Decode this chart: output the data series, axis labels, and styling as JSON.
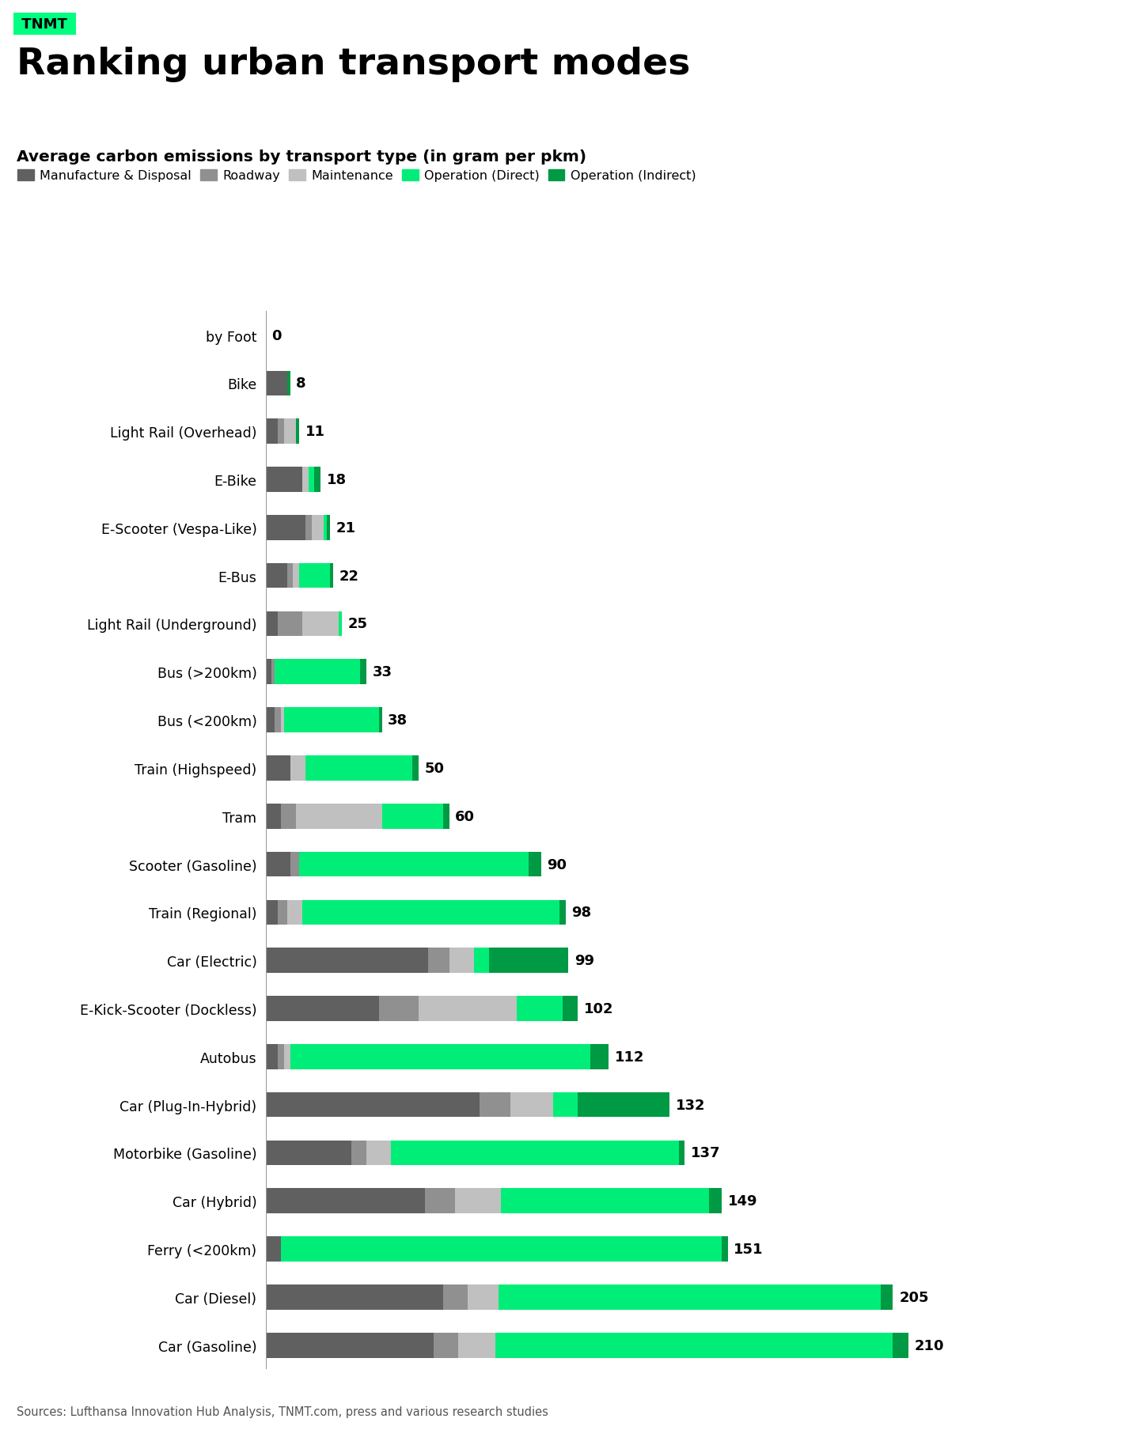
{
  "title": "Ranking urban transport modes",
  "subtitle": "Average carbon emissions by transport type (in gram per pkm)",
  "tnmt_label": "TNMT",
  "source": "Sources: Lufthansa Innovation Hub Analysis, TNMT.com, press and various research studies",
  "tnmt_bg_color": "#00FF80",
  "background_color": "#FFFFFF",
  "legend": [
    {
      "label": "Manufacture & Disposal",
      "color": "#606060"
    },
    {
      "label": "Roadway",
      "color": "#909090"
    },
    {
      "label": "Maintenance",
      "color": "#C0C0C0"
    },
    {
      "label": "Operation (Direct)",
      "color": "#00EE77"
    },
    {
      "label": "Operation (Indirect)",
      "color": "#009944"
    }
  ],
  "categories": [
    "by Foot",
    "Bike",
    "Light Rail (Overhead)",
    "E-Bike",
    "E-Scooter (Vespa-Like)",
    "E-Bus",
    "Light Rail (Underground)",
    "Bus (>200km)",
    "Bus (<200km)",
    "Train (Highspeed)",
    "Tram",
    "Scooter (Gasoline)",
    "Train (Regional)",
    "Car (Electric)",
    "E-Kick-Scooter (Dockless)",
    "Autobus",
    "Car (Plug-In-Hybrid)",
    "Motorbike (Gasoline)",
    "Car (Hybrid)",
    "Ferry (<200km)",
    "Car (Diesel)",
    "Car (Gasoline)"
  ],
  "totals": [
    0,
    8,
    11,
    18,
    21,
    22,
    25,
    33,
    38,
    50,
    60,
    90,
    98,
    99,
    102,
    112,
    132,
    137,
    149,
    151,
    205,
    210
  ],
  "segments": {
    "manufacture_disposal": [
      0,
      7,
      4,
      12,
      13,
      7,
      4,
      2,
      3,
      8,
      5,
      8,
      4,
      53,
      37,
      4,
      70,
      28,
      52,
      5,
      58,
      55
    ],
    "roadway": [
      0,
      0,
      2,
      0,
      2,
      2,
      8,
      1,
      2,
      0,
      5,
      3,
      3,
      7,
      13,
      2,
      10,
      5,
      10,
      0,
      8,
      8
    ],
    "maintenance": [
      0,
      0,
      4,
      2,
      4,
      2,
      12,
      0,
      1,
      5,
      28,
      0,
      5,
      8,
      32,
      2,
      14,
      8,
      15,
      0,
      10,
      12
    ],
    "operation_direct": [
      0,
      0,
      0,
      2,
      1,
      10,
      1,
      28,
      31,
      35,
      20,
      75,
      84,
      5,
      15,
      98,
      8,
      94,
      68,
      144,
      125,
      130
    ],
    "operation_indirect": [
      0,
      1,
      1,
      2,
      1,
      1,
      0,
      2,
      1,
      2,
      2,
      4,
      2,
      26,
      5,
      6,
      30,
      2,
      4,
      2,
      4,
      5
    ]
  },
  "colors": {
    "manufacture_disposal": "#606060",
    "roadway": "#909090",
    "maintenance": "#C0C0C0",
    "operation_direct": "#00EE77",
    "operation_indirect": "#009944"
  }
}
